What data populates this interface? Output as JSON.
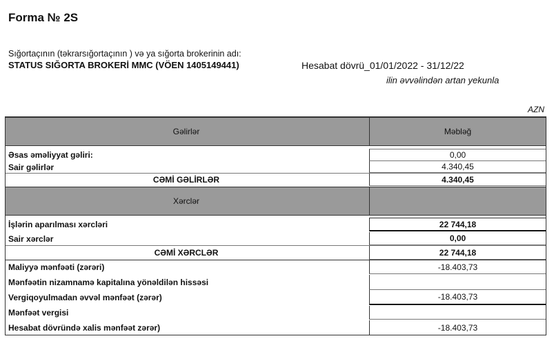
{
  "header": {
    "title": "Forma № 2S",
    "subtitle": "Sığortaçının (təkrarsığortaçının ) və ya sığorta brokerinin adı:",
    "company": "STATUS SIĞORTA BROKERİ MMC (VÖEN  1405149441)",
    "period": "Hesabat dövrü_01/01/2022 - 31/12/22",
    "cumulative": "ilin əvvəlindən artan yekunla",
    "currency": "AZN"
  },
  "table": {
    "income_header": "Gəlirlər",
    "amount_header": "Məbləğ",
    "rows": [
      {
        "label": "Əsas əməliyyat gəliri:",
        "value": "0,00"
      },
      {
        "label": "Sair gəlirlər",
        "value": "4.340,45"
      },
      {
        "label": "CƏMİ  GƏLİRLƏR",
        "value": "4.340,45"
      },
      {
        "label": "Xərclər",
        "value": ""
      },
      {
        "label": "İşlərin aparılması xərcləri",
        "value": "22 744,18"
      },
      {
        "label": "Sair xərclər",
        "value": "0,00"
      },
      {
        "label": "CƏMİ  XƏRCLƏR",
        "value": "22 744,18"
      },
      {
        "label": "Maliyyə mənfəəti (zərəri)",
        "value": "-18.403,73"
      },
      {
        "label": "Mənfəətin nizamnamə kapitalına yönəldilən hissəsi",
        "value": ""
      },
      {
        "label": "Vergiqoyulmadan əvvəl mənfəət (zərər)",
        "value": "-18.403,73"
      },
      {
        "label": "Mənfəət vergisi",
        "value": ""
      },
      {
        "label": "Hesabat dövründə xalis mənfəət zərər)",
        "value": "-18.403,73"
      }
    ]
  }
}
